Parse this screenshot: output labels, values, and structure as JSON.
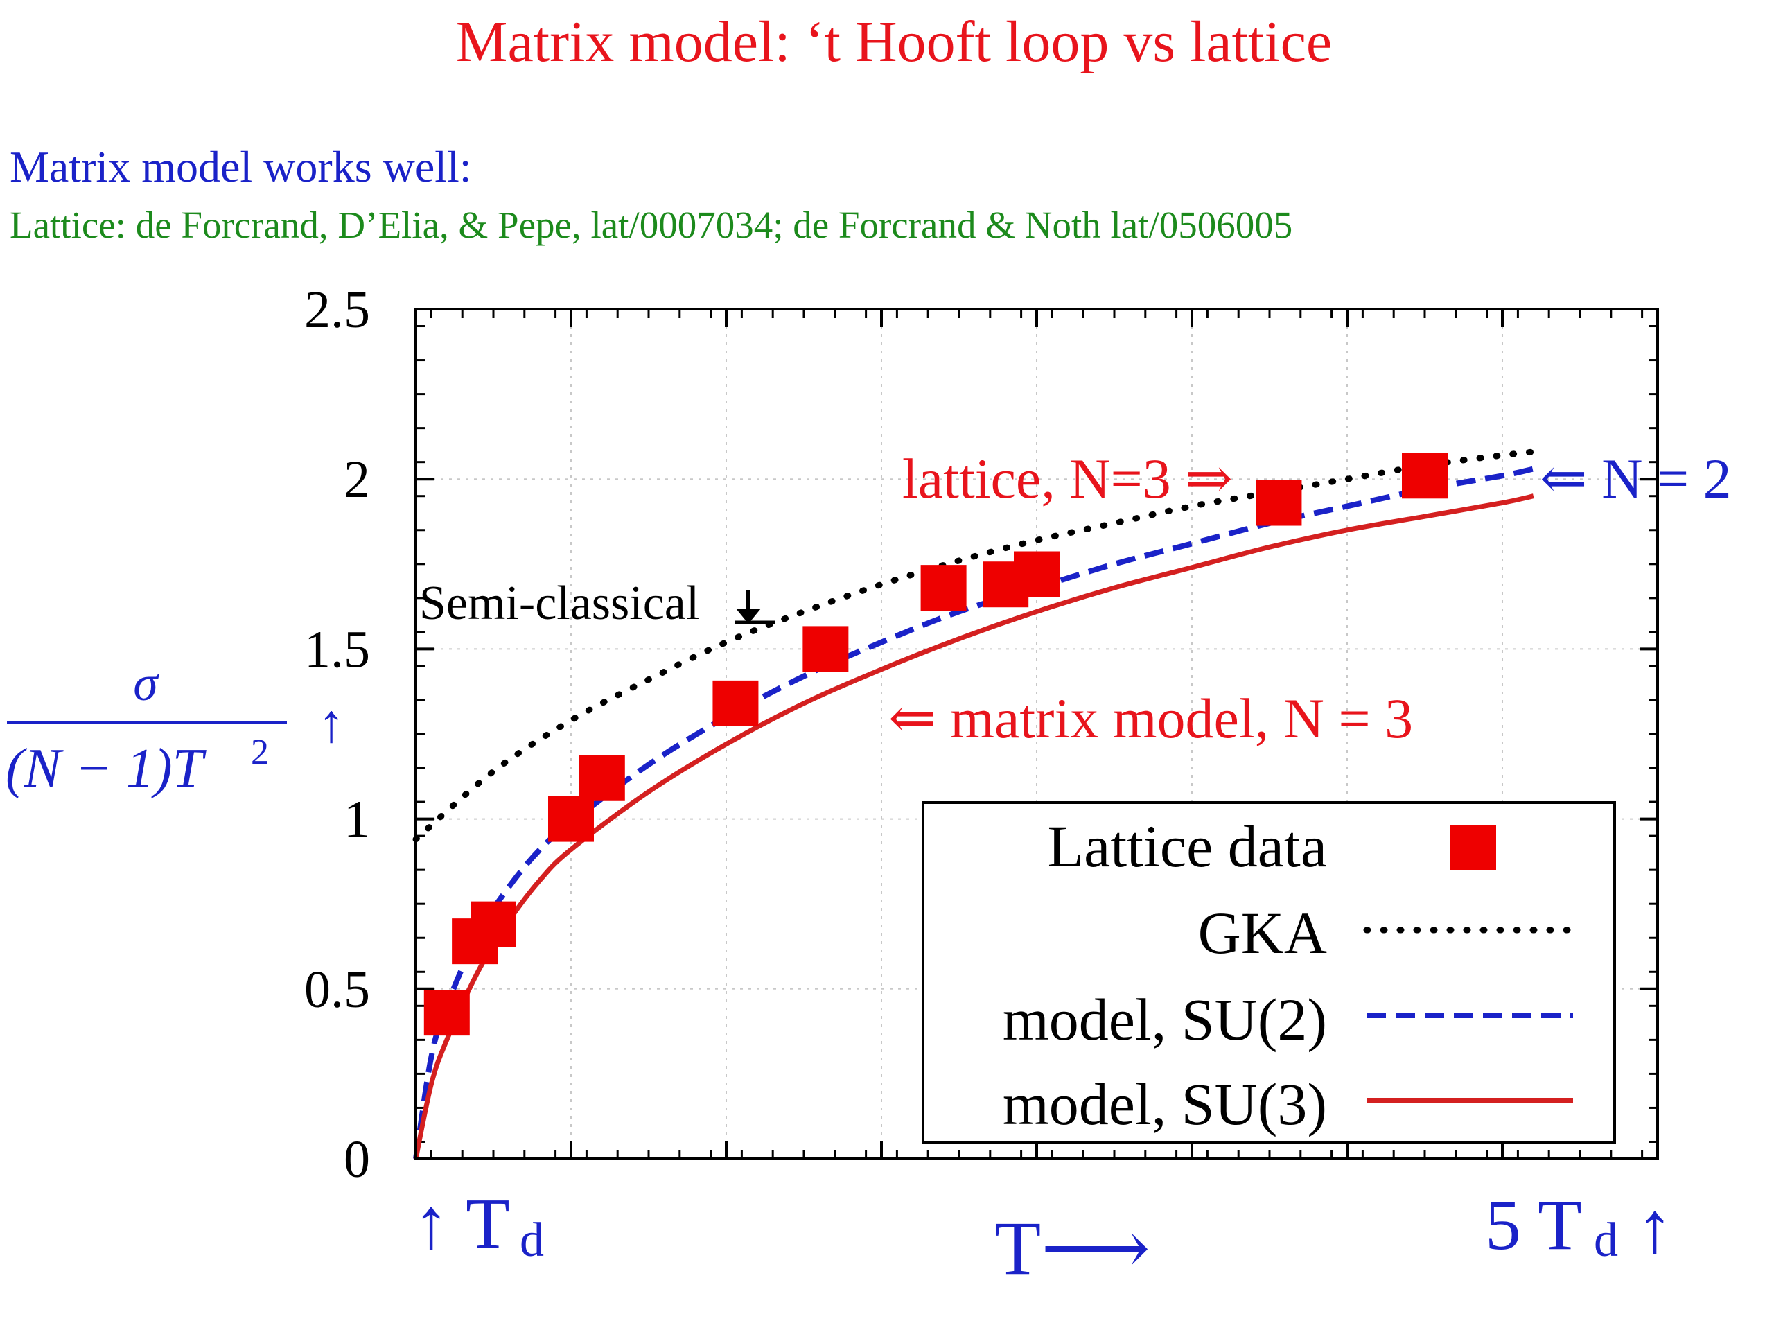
{
  "colors": {
    "title": "#e8141c",
    "blue": "#1a22c8",
    "green": "#1c8a1c",
    "series_lattice": "#ee0000",
    "series_gka": "#000000",
    "series_su2": "#1a22c8",
    "series_su3": "#d42020"
  },
  "slide": {
    "title": "Matrix model: ‘t Hooft loop vs lattice",
    "subtitle": "Matrix model works well:",
    "reference": "Lattice: de Forcrand, D’Elia, & Pepe, lat/0007034;  de Forcrand & Noth lat/0506005"
  },
  "annotations": {
    "semi_classical": "Semi-classical",
    "lattice_n3": "lattice, N=3 ⇒",
    "n2": "⇐  N = 2",
    "matrix_n3": "⇐ matrix model, N = 3",
    "ylabel_num": "σ",
    "ylabel_den_a": "(N − 1)T",
    "ylabel_den_b": "2",
    "ylabel_arrow": "↑",
    "x_left_arrow": "↑ T",
    "x_left_sub": "d",
    "x_center": "T⟶",
    "x_right_a": "5 T",
    "x_right_sub": "d",
    "x_right_arrow": "↑"
  },
  "chart_data": {
    "type": "line",
    "xlim": [
      1,
      5
    ],
    "ylim": [
      0,
      2.5
    ],
    "y_ticks": [
      0,
      0.5,
      1,
      1.5,
      2,
      2.5
    ],
    "y_tick_labels": [
      "0",
      "0.5",
      "1",
      "1.5",
      "2",
      "2.5"
    ],
    "grid": true,
    "legend_position": "bottom-right",
    "series": [
      {
        "name": "Lattice data",
        "kind": "scatter",
        "x": [
          1.1,
          1.19,
          1.25,
          1.5,
          1.6,
          2.03,
          2.32,
          2.7,
          2.9,
          3.0,
          3.78,
          4.25
        ],
        "y": [
          0.43,
          0.64,
          0.69,
          1.0,
          1.12,
          1.34,
          1.5,
          1.68,
          1.69,
          1.72,
          1.93,
          2.01
        ]
      },
      {
        "name": "GKA",
        "kind": "dotted",
        "x": [
          1.0,
          1.25,
          1.5,
          1.75,
          2.0,
          2.25,
          2.5,
          2.75,
          3.0,
          3.25,
          3.5,
          3.75,
          4.0,
          4.25,
          4.5,
          4.6
        ],
        "y": [
          0.94,
          1.14,
          1.29,
          1.41,
          1.52,
          1.61,
          1.69,
          1.76,
          1.82,
          1.87,
          1.92,
          1.96,
          2.0,
          2.04,
          2.07,
          2.08
        ]
      },
      {
        "name": "model, SU(2)",
        "kind": "dashed",
        "x": [
          1.0,
          1.05,
          1.1,
          1.2,
          1.3,
          1.4,
          1.5,
          1.75,
          2.0,
          2.25,
          2.5,
          2.75,
          3.0,
          3.25,
          3.5,
          3.75,
          4.0,
          4.25,
          4.5,
          4.6
        ],
        "y": [
          0.0,
          0.3,
          0.45,
          0.66,
          0.8,
          0.91,
          0.99,
          1.16,
          1.3,
          1.42,
          1.52,
          1.61,
          1.68,
          1.75,
          1.81,
          1.87,
          1.92,
          1.97,
          2.01,
          2.03
        ]
      },
      {
        "name": "model, SU(3)",
        "kind": "solid",
        "x": [
          1.0,
          1.05,
          1.1,
          1.2,
          1.3,
          1.4,
          1.5,
          1.75,
          2.0,
          2.25,
          2.5,
          2.75,
          3.0,
          3.25,
          3.5,
          3.75,
          4.0,
          4.25,
          4.5,
          4.6
        ],
        "y": [
          0.0,
          0.22,
          0.35,
          0.55,
          0.7,
          0.82,
          0.91,
          1.08,
          1.22,
          1.34,
          1.44,
          1.53,
          1.61,
          1.68,
          1.74,
          1.8,
          1.85,
          1.89,
          1.93,
          1.95
        ]
      }
    ]
  }
}
